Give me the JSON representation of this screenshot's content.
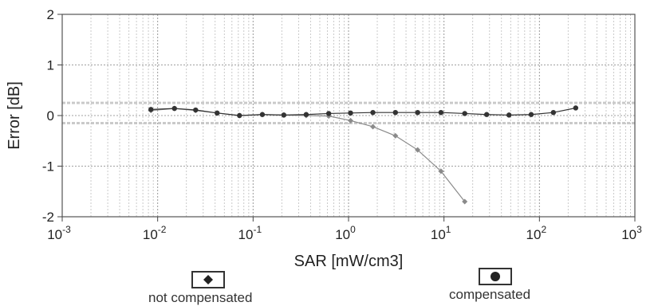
{
  "chart_data": {
    "type": "scatter",
    "xlabel": "SAR [mW/cm3]",
    "ylabel": "Error [dB]",
    "x_scale": "log",
    "xlim": [
      0.001,
      1000
    ],
    "ylim": [
      -2,
      2
    ],
    "x_ticks": [
      {
        "value": 0.001,
        "base": "10",
        "exp": "-3"
      },
      {
        "value": 0.01,
        "base": "10",
        "exp": "-2"
      },
      {
        "value": 0.1,
        "base": "10",
        "exp": "-1"
      },
      {
        "value": 1,
        "base": "10",
        "exp": "0"
      },
      {
        "value": 10,
        "base": "10",
        "exp": "1"
      },
      {
        "value": 100,
        "base": "10",
        "exp": "2"
      },
      {
        "value": 1000,
        "base": "10",
        "exp": "3"
      }
    ],
    "y_ticks": [
      2,
      1,
      0,
      -1,
      -2
    ],
    "grid": true,
    "legend_position": "bottom",
    "band": {
      "upper": 0.25,
      "lower": -0.15,
      "color": "#bdbdbd"
    },
    "series": [
      {
        "name": "not compensated",
        "marker": "diamond",
        "color": "#8a8a8a",
        "x": [
          0.0085,
          0.015,
          0.025,
          0.042,
          0.072,
          0.125,
          0.21,
          0.36,
          0.62,
          1.05,
          1.8,
          3.1,
          5.3,
          9.3,
          16.5
        ],
        "y": [
          0.1,
          0.14,
          0.1,
          0.05,
          0.0,
          0.02,
          0.01,
          0.0,
          -0.01,
          -0.1,
          -0.22,
          -0.4,
          -0.68,
          -1.1,
          -1.7
        ]
      },
      {
        "name": "compensated",
        "marker": "circle",
        "color": "#333333",
        "x": [
          0.0085,
          0.015,
          0.025,
          0.042,
          0.072,
          0.125,
          0.21,
          0.36,
          0.62,
          1.05,
          1.8,
          3.1,
          5.3,
          9.3,
          16.5,
          28,
          48,
          82,
          140,
          240
        ],
        "y": [
          0.12,
          0.14,
          0.11,
          0.05,
          0.0,
          0.02,
          0.01,
          0.02,
          0.04,
          0.05,
          0.06,
          0.06,
          0.06,
          0.06,
          0.04,
          0.02,
          0.01,
          0.02,
          0.06,
          0.15
        ]
      }
    ]
  },
  "legend": {
    "not_compensated": "not compensated",
    "compensated": "compensated"
  }
}
